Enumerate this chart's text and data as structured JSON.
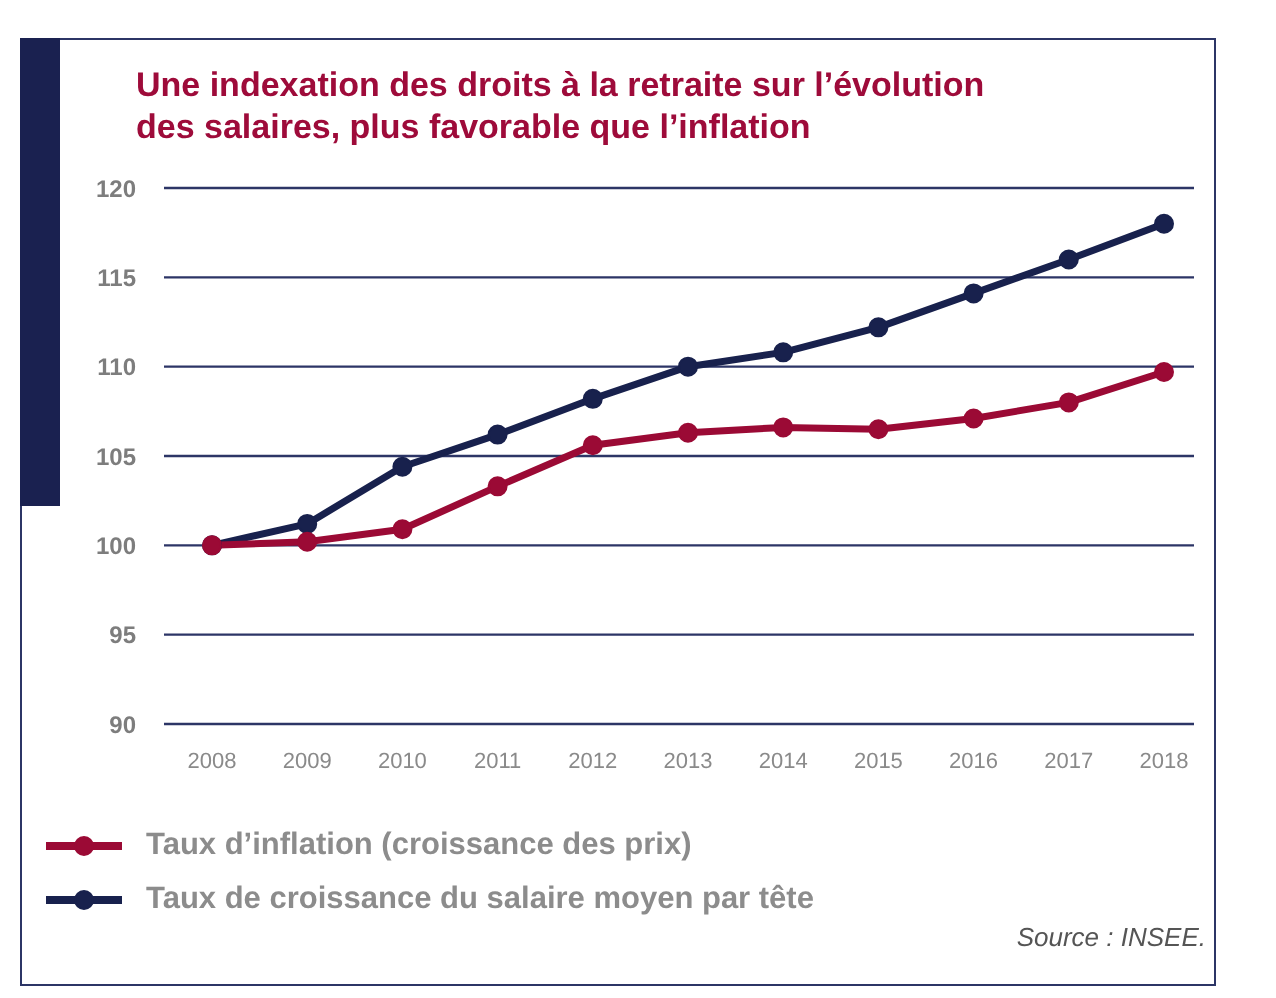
{
  "chart_data": {
    "type": "line",
    "title": "Une indexation des droits à la retraite sur l’évolution des salaires, plus favorable que l’inflation",
    "categories": [
      "2008",
      "2009",
      "2010",
      "2011",
      "2012",
      "2013",
      "2014",
      "2015",
      "2016",
      "2017",
      "2018"
    ],
    "series": [
      {
        "name": "Taux d’inflation (croissance des prix)",
        "color": "#9b0a35",
        "values": [
          100,
          100.2,
          100.9,
          103.3,
          105.6,
          106.3,
          106.6,
          106.5,
          107.1,
          108,
          109.7
        ]
      },
      {
        "name": "Taux de croissance du salaire moyen par tête",
        "color": "#18214d",
        "values": [
          100,
          101.2,
          104.4,
          106.2,
          108.2,
          110,
          110.8,
          112.2,
          114.1,
          116,
          118
        ]
      }
    ],
    "ylim": [
      90,
      120
    ],
    "yticks": [
      90,
      95,
      100,
      105,
      110,
      115,
      120
    ],
    "grid": "y",
    "legend": "bottom left",
    "marker": "circle",
    "line_style": "solid",
    "annotations": [
      "Source : INSEE."
    ]
  }
}
